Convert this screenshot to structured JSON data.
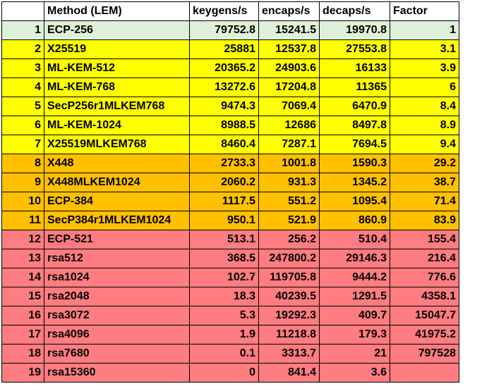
{
  "table": {
    "headers": [
      "",
      "Method (LEM)",
      "keygens/s",
      "encaps/s",
      "decaps/s",
      "Factor"
    ],
    "rows": [
      {
        "idx": "1",
        "method": "ECP-256",
        "keygens": "79752.8",
        "encaps": "15241.5",
        "decaps": "19970.8",
        "factor": "1",
        "tier": "baseline"
      },
      {
        "idx": "2",
        "method": "X25519",
        "keygens": "25881",
        "encaps": "12537.8",
        "decaps": "27553.8",
        "factor": "3.1",
        "tier": "fast"
      },
      {
        "idx": "3",
        "method": "ML-KEM-512",
        "keygens": "20365.2",
        "encaps": "24903.6",
        "decaps": "16133",
        "factor": "3.9",
        "tier": "fast"
      },
      {
        "idx": "4",
        "method": "ML-KEM-768",
        "keygens": "13272.6",
        "encaps": "17204.8",
        "decaps": "11365",
        "factor": "6",
        "tier": "fast"
      },
      {
        "idx": "5",
        "method": "SecP256r1MLKEM768",
        "keygens": "9474.3",
        "encaps": "7069.4",
        "decaps": "6470.9",
        "factor": "8.4",
        "tier": "fast"
      },
      {
        "idx": "6",
        "method": "ML-KEM-1024",
        "keygens": "8988.5",
        "encaps": "12686",
        "decaps": "8497.8",
        "factor": "8.9",
        "tier": "fast"
      },
      {
        "idx": "7",
        "method": "X25519MLKEM768",
        "keygens": "8460.4",
        "encaps": "7287.1",
        "decaps": "7694.5",
        "factor": "9.4",
        "tier": "fast"
      },
      {
        "idx": "8",
        "method": "X448",
        "keygens": "2733.3",
        "encaps": "1001.8",
        "decaps": "1590.3",
        "factor": "29.2",
        "tier": "medium"
      },
      {
        "idx": "9",
        "method": "X448MLKEM1024",
        "keygens": "2060.2",
        "encaps": "931.3",
        "decaps": "1345.2",
        "factor": "38.7",
        "tier": "medium"
      },
      {
        "idx": "10",
        "method": "ECP-384",
        "keygens": "1117.5",
        "encaps": "551.2",
        "decaps": "1095.4",
        "factor": "71.4",
        "tier": "medium"
      },
      {
        "idx": "11",
        "method": "SecP384r1MLKEM1024",
        "keygens": "950.1",
        "encaps": "521.9",
        "decaps": "860.9",
        "factor": "83.9",
        "tier": "medium"
      },
      {
        "idx": "12",
        "method": "ECP-521",
        "keygens": "513.1",
        "encaps": "256.2",
        "decaps": "510.4",
        "factor": "155.4",
        "tier": "slow"
      },
      {
        "idx": "13",
        "method": "rsa512",
        "keygens": "368.5",
        "encaps": "247800.2",
        "decaps": "29146.3",
        "factor": "216.4",
        "tier": "slow"
      },
      {
        "idx": "14",
        "method": "rsa1024",
        "keygens": "102.7",
        "encaps": "119705.8",
        "decaps": "9444.2",
        "factor": "776.6",
        "tier": "slow"
      },
      {
        "idx": "15",
        "method": "rsa2048",
        "keygens": "18.3",
        "encaps": "40239.5",
        "decaps": "1291.5",
        "factor": "4358.1",
        "tier": "slow"
      },
      {
        "idx": "16",
        "method": "rsa3072",
        "keygens": "5.3",
        "encaps": "19292.3",
        "decaps": "409.7",
        "factor": "15047.7",
        "tier": "slow"
      },
      {
        "idx": "17",
        "method": "rsa4096",
        "keygens": "1.9",
        "encaps": "11218.8",
        "decaps": "179.3",
        "factor": "41975.2",
        "tier": "slow"
      },
      {
        "idx": "18",
        "method": "rsa7680",
        "keygens": "0.1",
        "encaps": "3313.7",
        "decaps": "21",
        "factor": "797528",
        "tier": "slow"
      },
      {
        "idx": "19",
        "method": "rsa15360",
        "keygens": "0",
        "encaps": "841.4",
        "decaps": "3.6",
        "factor": "",
        "tier": "slow"
      }
    ]
  },
  "colors": {
    "baseline": "#dff0d8",
    "fast": "#ffff00",
    "medium": "#ffc000",
    "slow": "#ff7c80",
    "header": "#ffffff",
    "border": "#000000"
  }
}
